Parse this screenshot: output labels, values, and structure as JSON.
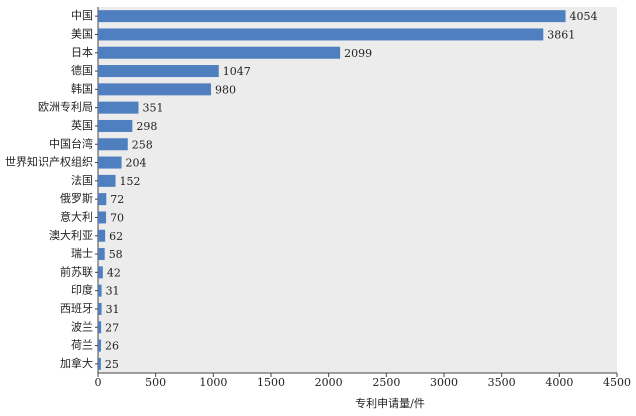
{
  "chart_data": {
    "type": "hbar",
    "x_label": "专利申请量/件",
    "categories": [
      "中国",
      "美国",
      "日本",
      "德国",
      "韩国",
      "欧洲专利局",
      "英国",
      "中国台湾",
      "世界知识产权组织",
      "法国",
      "俄罗斯",
      "意大利",
      "澳大利亚",
      "瑞士",
      "前苏联",
      "印度",
      "西班牙",
      "波兰",
      "荷兰",
      "加拿大"
    ],
    "values": [
      4054,
      3861,
      2099,
      1047,
      980,
      351,
      298,
      258,
      204,
      152,
      72,
      70,
      62,
      58,
      42,
      31,
      31,
      27,
      26,
      25
    ],
    "color": "#4f7fbf",
    "plot_background": "#ececec",
    "xlim": [
      0,
      4500
    ],
    "xticks": [
      0,
      500,
      1000,
      1500,
      2000,
      2500,
      3000,
      3500,
      4000,
      4500
    ],
    "grid": false
  }
}
